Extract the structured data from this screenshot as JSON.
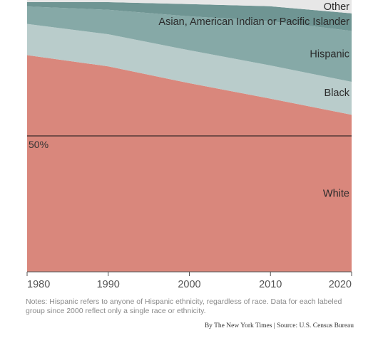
{
  "chart_data": {
    "type": "area",
    "stacked": "percent",
    "x": [
      1980,
      1990,
      2000,
      2010,
      2020
    ],
    "xticks": [
      "1980",
      "1990",
      "2000",
      "2010",
      "2020"
    ],
    "ylim": [
      0,
      100
    ],
    "reference_line": {
      "value": 50,
      "label": "50%"
    },
    "series": [
      {
        "name": "White",
        "values": [
          79.7,
          75.6,
          69.4,
          63.7,
          57.8
        ],
        "color": "#d9877c"
      },
      {
        "name": "Black",
        "values": [
          11.5,
          11.8,
          12.1,
          12.2,
          12.1
        ],
        "color": "#b9cccb"
      },
      {
        "name": "Hispanic",
        "values": [
          6.4,
          9.0,
          12.5,
          16.3,
          18.7
        ],
        "color": "#86a9a7"
      },
      {
        "name": "Asian, American Indian or Pacific Islander",
        "values": [
          1.6,
          2.8,
          4.5,
          5.5,
          6.5
        ],
        "color": "#6f9593"
      },
      {
        "name": "Other",
        "values": [
          0.8,
          0.8,
          1.5,
          2.3,
          4.9
        ],
        "color": "#e7e7e7"
      }
    ]
  },
  "notes": "Notes: Hispanic refers to anyone of Hispanic ethnicity, regardless of race. Data for each labeled group since 2000 reflect only a single race or ethnicity.",
  "credit": "By The New York Times | Source: U.S. Census Bureau"
}
